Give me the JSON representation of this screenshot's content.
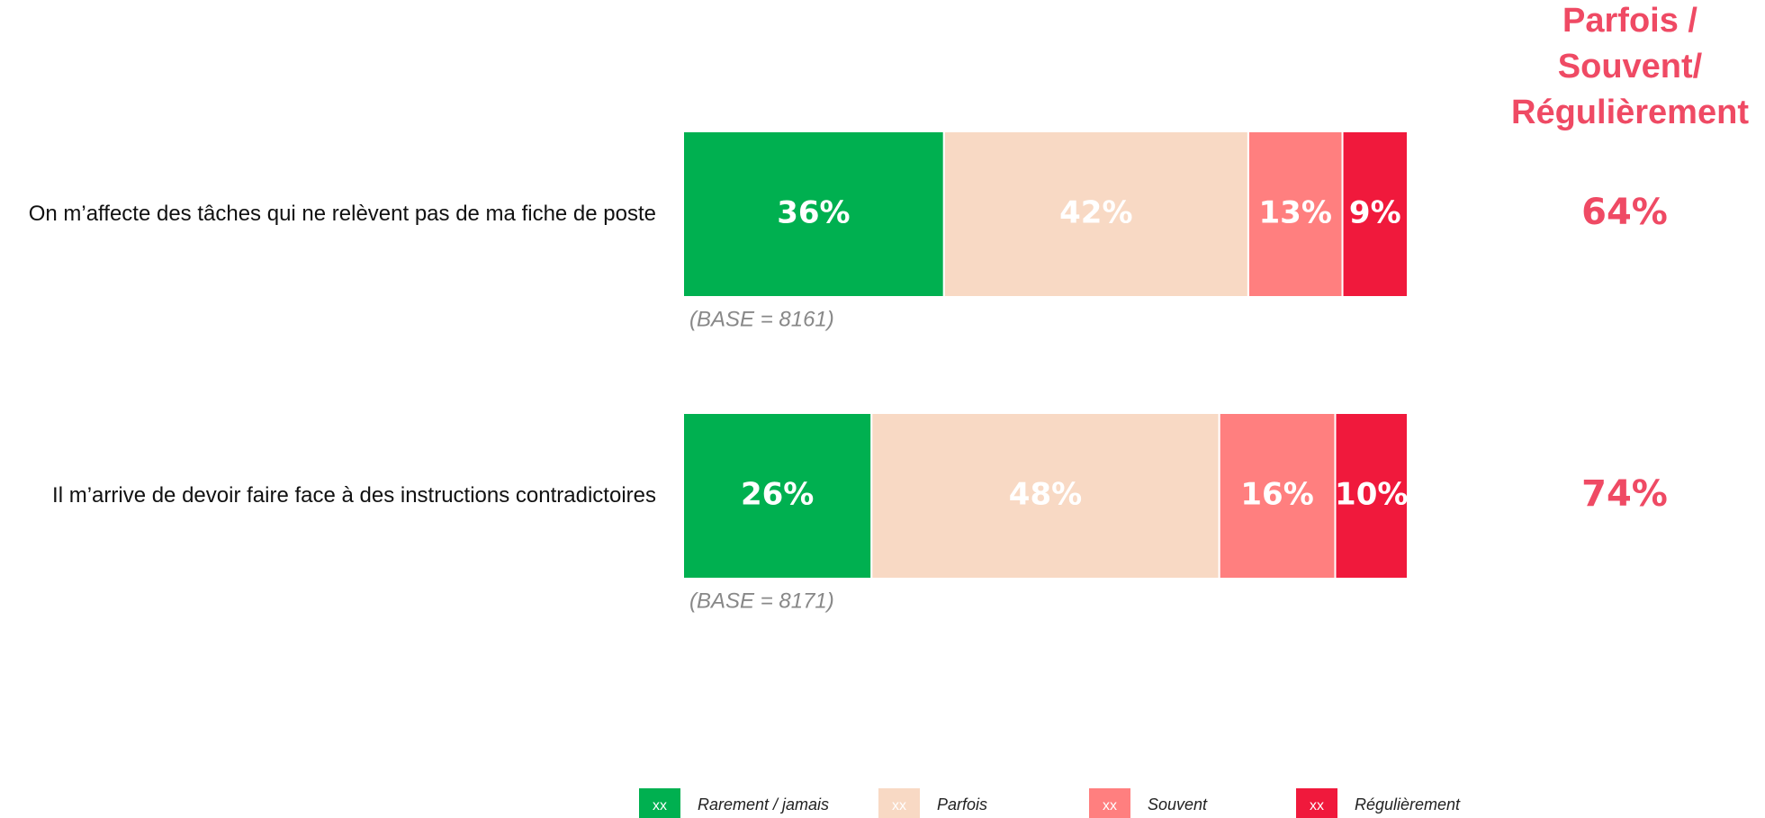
{
  "chart_data": {
    "type": "stacked_bar_horizontal",
    "categories": [
      "On m’affecte des tâches qui ne relèvent pas de ma fiche de poste",
      "Il m’arrive de devoir faire face à des instructions contradictoires"
    ],
    "bases": [
      "(BASE = 8161)",
      "(BASE = 8171)"
    ],
    "xlim": [
      0,
      100
    ],
    "series": [
      {
        "name": "Rarement / jamais",
        "color": "#00b050",
        "swatch_label": "xx",
        "values": [
          36,
          26
        ],
        "value_labels": [
          "36%",
          "26%"
        ]
      },
      {
        "name": "Parfois",
        "color": "#f8d9c4",
        "swatch_label": "xx",
        "values": [
          42,
          48
        ],
        "value_labels": [
          "42%",
          "48%"
        ]
      },
      {
        "name": "Souvent",
        "color": "#ff7f7f",
        "swatch_label": "xx",
        "values": [
          13,
          16
        ],
        "value_labels": [
          "13%",
          "16%"
        ]
      },
      {
        "name": "Régulièrement",
        "color": "#f0193c",
        "swatch_label": "xx",
        "values": [
          9,
          10
        ],
        "value_labels": [
          "9%",
          "10%"
        ]
      }
    ],
    "totals": {
      "title": [
        "Parfois /",
        "Souvent/",
        "Régulièrement"
      ],
      "color": "#ef4a64",
      "values": [
        64,
        74
      ],
      "value_labels": [
        "64%",
        "74%"
      ]
    }
  }
}
